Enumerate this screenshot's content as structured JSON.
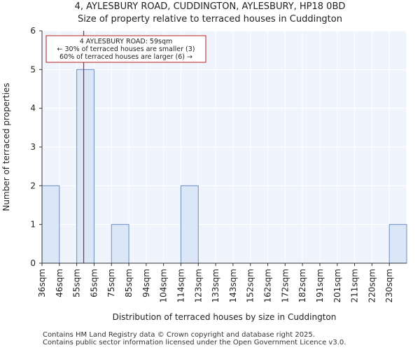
{
  "header": {
    "title": "4, AYLESBURY ROAD, CUDDINGTON, AYLESBURY, HP18 0BD",
    "subtitle": "Size of property relative to terraced houses in Cuddington"
  },
  "chart_data": {
    "type": "bar",
    "categories": [
      "36sqm",
      "46sqm",
      "55sqm",
      "65sqm",
      "75sqm",
      "85sqm",
      "94sqm",
      "104sqm",
      "114sqm",
      "123sqm",
      "133sqm",
      "143sqm",
      "152sqm",
      "162sqm",
      "172sqm",
      "182sqm",
      "191sqm",
      "201sqm",
      "211sqm",
      "220sqm",
      "230sqm"
    ],
    "values": [
      2,
      0,
      5,
      0,
      1,
      0,
      0,
      0,
      2,
      0,
      0,
      0,
      0,
      0,
      0,
      0,
      0,
      0,
      0,
      0,
      1
    ],
    "xlabel": "Distribution of terraced houses by size in Cuddington",
    "ylabel": "Number of terraced properties",
    "ylim": [
      0,
      6
    ],
    "yticks": [
      0,
      1,
      2,
      3,
      4,
      5,
      6
    ],
    "grid": true,
    "marker": {
      "value": 59,
      "bin_start": 55,
      "bin_end": 65,
      "bin_index": 2,
      "color": "#b22222"
    },
    "annotation": {
      "line1": "4 AYLESBURY ROAD: 59sqm",
      "line2": "← 30% of terraced houses are smaller (3)",
      "line3": "60% of terraced houses are larger (6) →"
    },
    "colors": {
      "bar_fill": "#dbe6f6",
      "bar_stroke": "#6c8ebf",
      "plot_bg": "#f0f4fc",
      "grid": "#ffffff",
      "marker": "#b22222"
    }
  },
  "footer": {
    "line1": "Contains HM Land Registry data © Crown copyright and database right 2025.",
    "line2": "Contains public sector information licensed under the Open Government Licence v3.0."
  }
}
